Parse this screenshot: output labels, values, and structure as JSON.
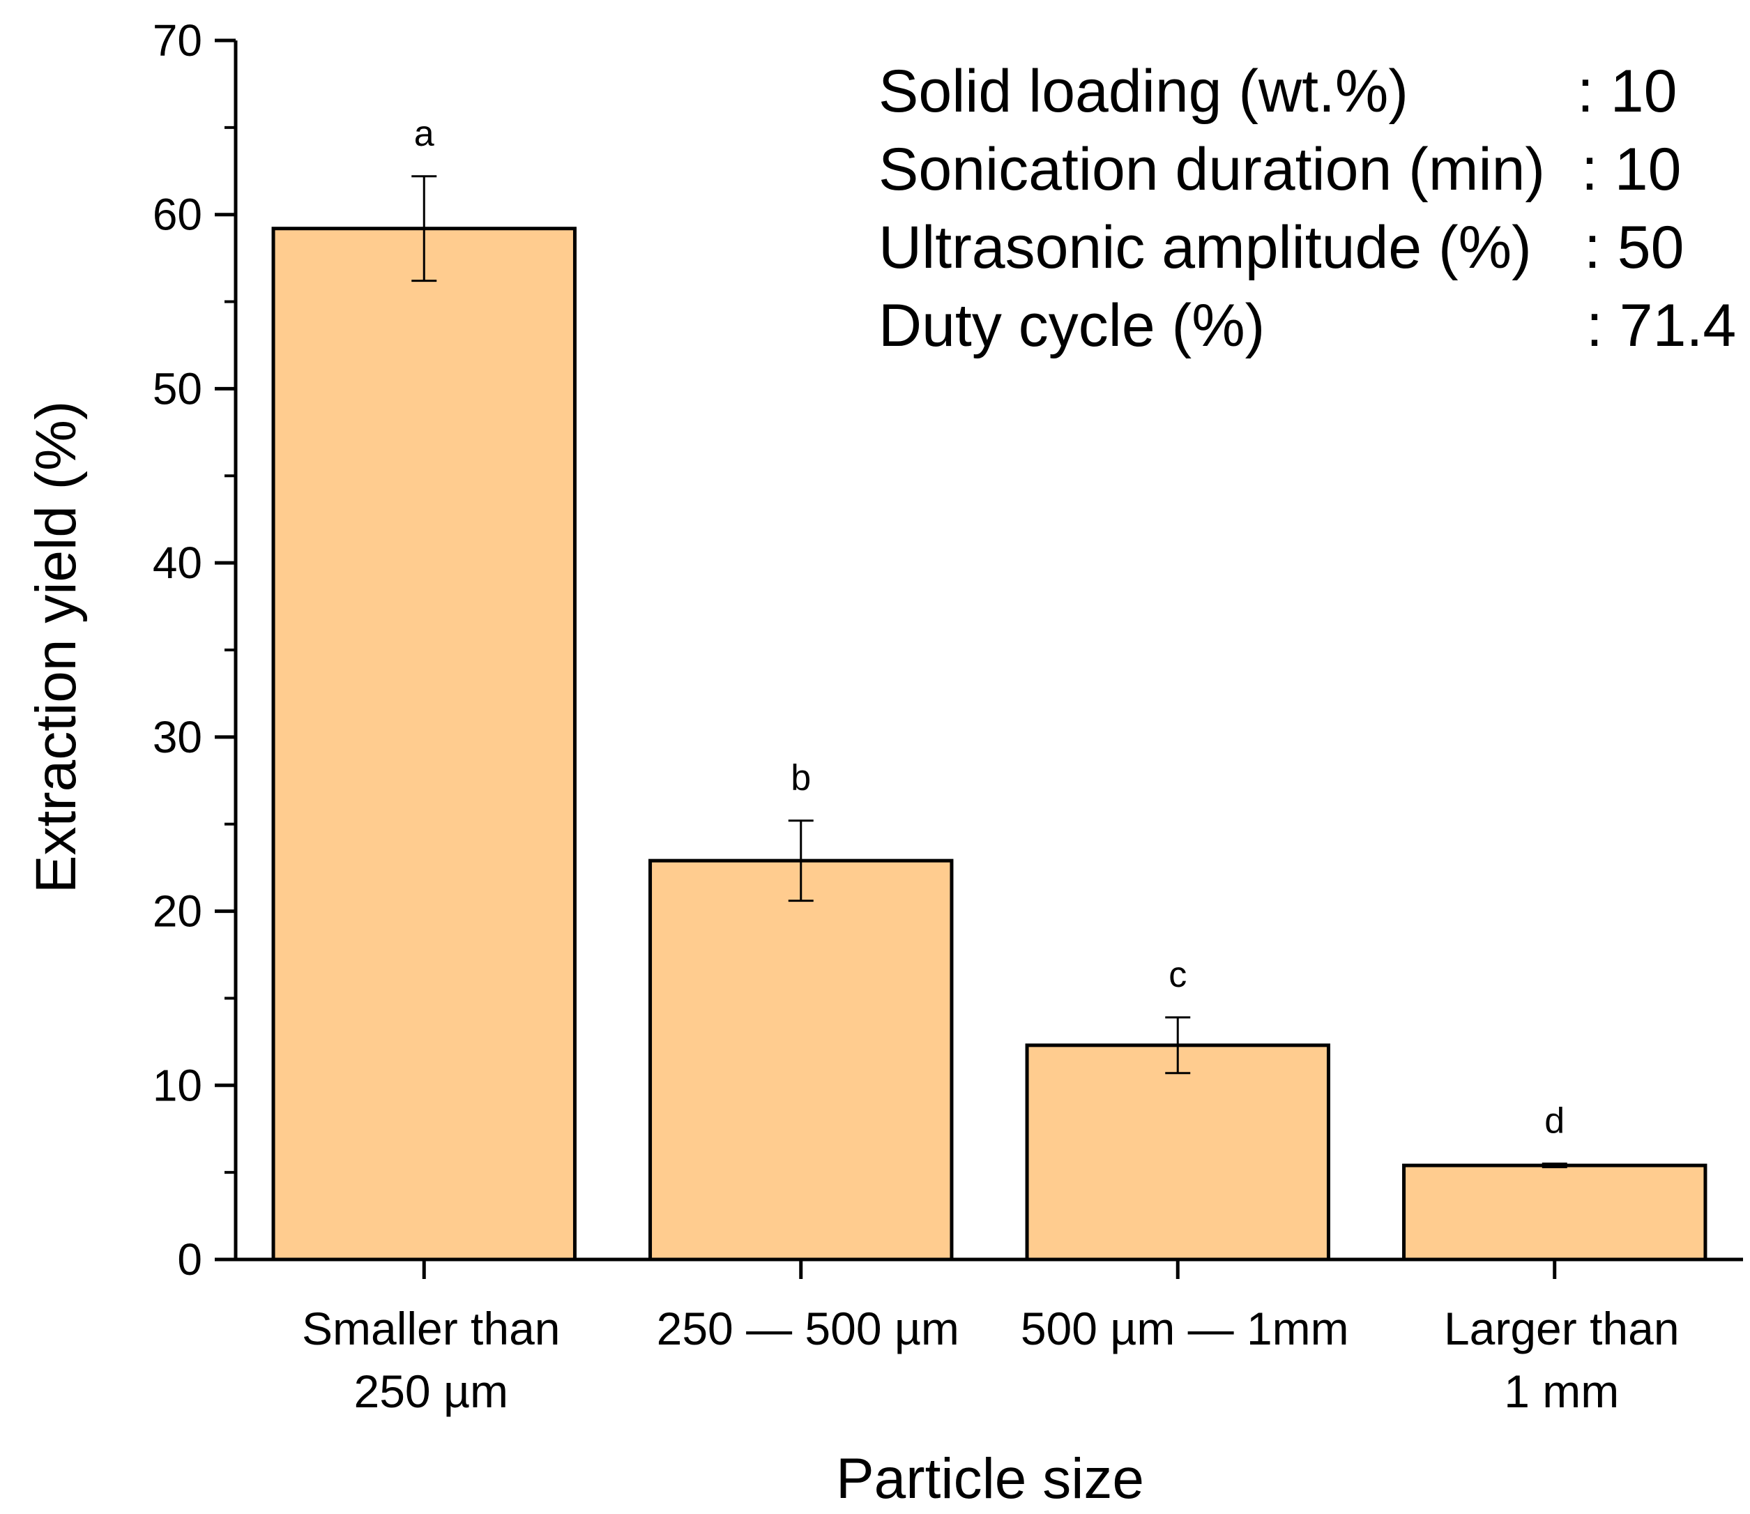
{
  "chart_data": {
    "type": "bar",
    "categories": [
      [
        "Smaller than",
        "250 µm"
      ],
      [
        "250 — 500 µm"
      ],
      [
        "500 µm — 1mm"
      ],
      [
        "Larger than",
        "1 mm"
      ]
    ],
    "values": [
      59.2,
      22.9,
      12.3,
      5.4
    ],
    "errors": [
      3.0,
      2.3,
      1.6,
      0.1
    ],
    "significance_letters": [
      "a",
      "b",
      "c",
      "d"
    ],
    "xlabel": "Particle size",
    "ylabel": "Extraction yield (%)",
    "ylim": [
      0,
      70
    ],
    "yticks": [
      0,
      10,
      20,
      30,
      40,
      50,
      60,
      70
    ],
    "bar_color": "#FFCC8F",
    "conditions": [
      {
        "label": "Solid loading (wt.%)",
        "value": ": 10"
      },
      {
        "label": "Sonication duration (min)",
        "value": ": 10"
      },
      {
        "label": "Ultrasonic amplitude (%)",
        "value": ": 50"
      },
      {
        "label": "Duty cycle (%)",
        "value": ": 71.4"
      }
    ]
  }
}
